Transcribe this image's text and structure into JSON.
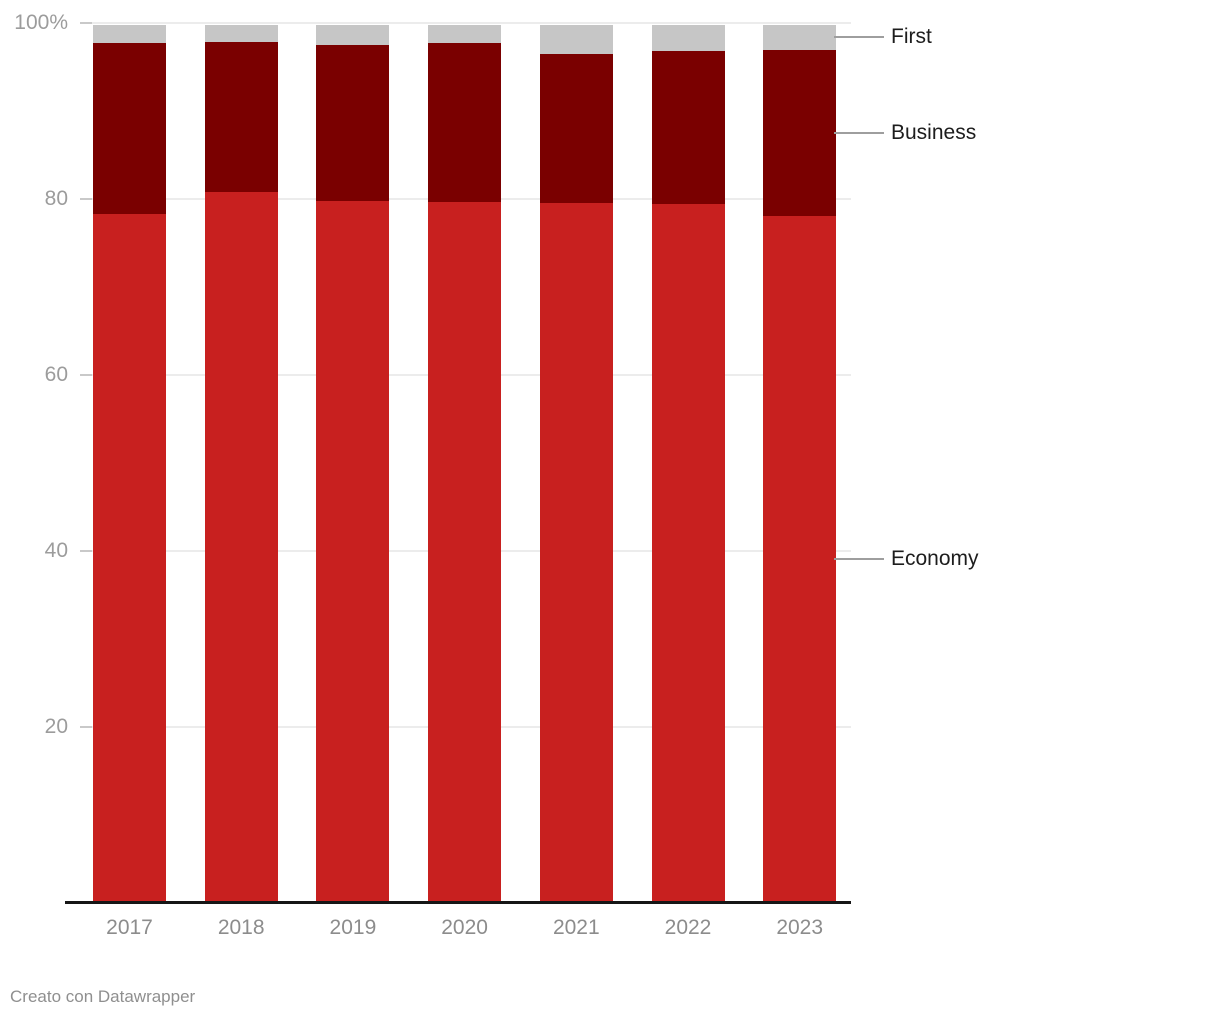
{
  "chart_data": {
    "type": "bar",
    "variant": "stacked-percent",
    "title": "",
    "xlabel": "",
    "ylabel": "",
    "ylim": [
      0,
      100
    ],
    "grid": true,
    "categories": [
      "2017",
      "2018",
      "2019",
      "2020",
      "2021",
      "2022",
      "2023"
    ],
    "series": [
      {
        "name": "Economy",
        "color": "#c8201f",
        "values": [
          78.5,
          81.0,
          80.0,
          79.8,
          79.7,
          79.6,
          78.3
        ]
      },
      {
        "name": "Business",
        "color": "#7a0000",
        "values": [
          19.5,
          17.1,
          17.7,
          18.2,
          17.0,
          17.4,
          18.9
        ]
      },
      {
        "name": "First",
        "color": "#c6c6c6",
        "values": [
          2.0,
          1.9,
          2.3,
          2.0,
          3.3,
          3.0,
          2.8
        ]
      }
    ],
    "y_ticks": [
      {
        "value": 100,
        "label": "100%"
      },
      {
        "value": 80,
        "label": "80"
      },
      {
        "value": 60,
        "label": "60"
      },
      {
        "value": 40,
        "label": "40"
      },
      {
        "value": 20,
        "label": "20"
      }
    ],
    "legend_position": "right-attached-to-last-bar",
    "legend_items": [
      "First",
      "Business",
      "Economy"
    ]
  },
  "footer": {
    "credit": "Creato con Datawrapper"
  }
}
